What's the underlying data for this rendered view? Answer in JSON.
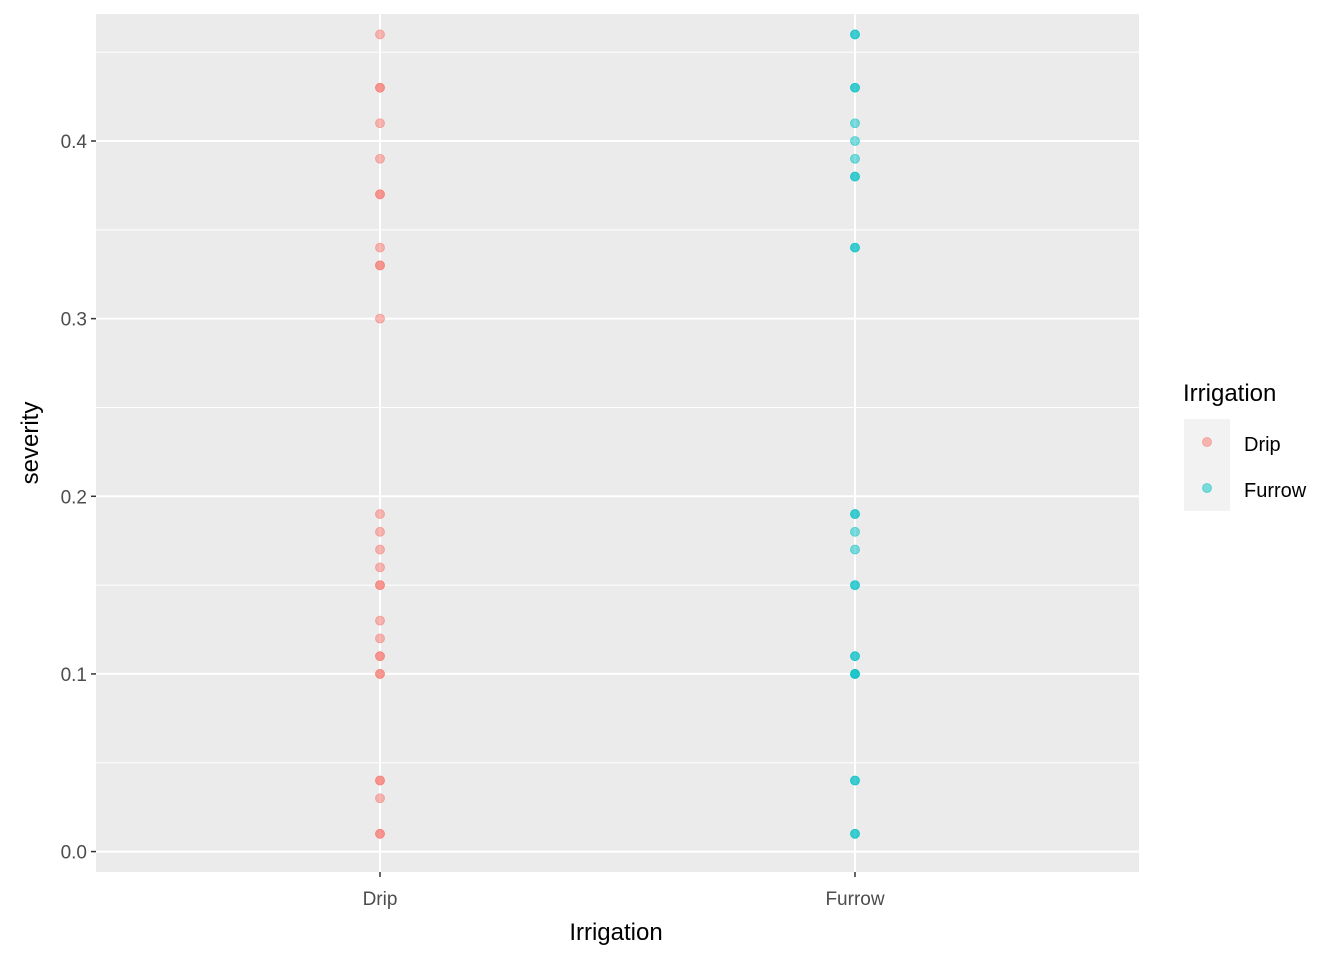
{
  "chart_data": {
    "type": "scatter",
    "xlabel": "Irrigation",
    "ylabel": "severity",
    "categories": [
      "Drip",
      "Furrow"
    ],
    "ylim": [
      -0.0115,
      0.4715
    ],
    "y_ticks": [
      "0.0",
      "0.1",
      "0.2",
      "0.3",
      "0.4"
    ],
    "y_tick_values": [
      0.0,
      0.1,
      0.2,
      0.3,
      0.4
    ],
    "grid": true,
    "legend": {
      "title": "Irrigation",
      "position": "right",
      "items": [
        "Drip",
        "Furrow"
      ]
    },
    "colors": {
      "Drip": "#F8766D",
      "Furrow": "#00BFC4"
    },
    "series": [
      {
        "name": "Drip",
        "x": "Drip",
        "values": [
          0.46,
          0.43,
          0.43,
          0.41,
          0.39,
          0.37,
          0.37,
          0.34,
          0.33,
          0.33,
          0.3,
          0.19,
          0.18,
          0.17,
          0.16,
          0.15,
          0.15,
          0.13,
          0.12,
          0.11,
          0.11,
          0.1,
          0.1,
          0.04,
          0.04,
          0.03,
          0.01,
          0.01
        ]
      },
      {
        "name": "Furrow",
        "x": "Furrow",
        "values": [
          0.46,
          0.46,
          0.43,
          0.43,
          0.41,
          0.4,
          0.39,
          0.38,
          0.38,
          0.34,
          0.34,
          0.19,
          0.19,
          0.18,
          0.17,
          0.15,
          0.15,
          0.11,
          0.11,
          0.1,
          0.1,
          0.1,
          0.04,
          0.04,
          0.01,
          0.01
        ]
      }
    ]
  }
}
